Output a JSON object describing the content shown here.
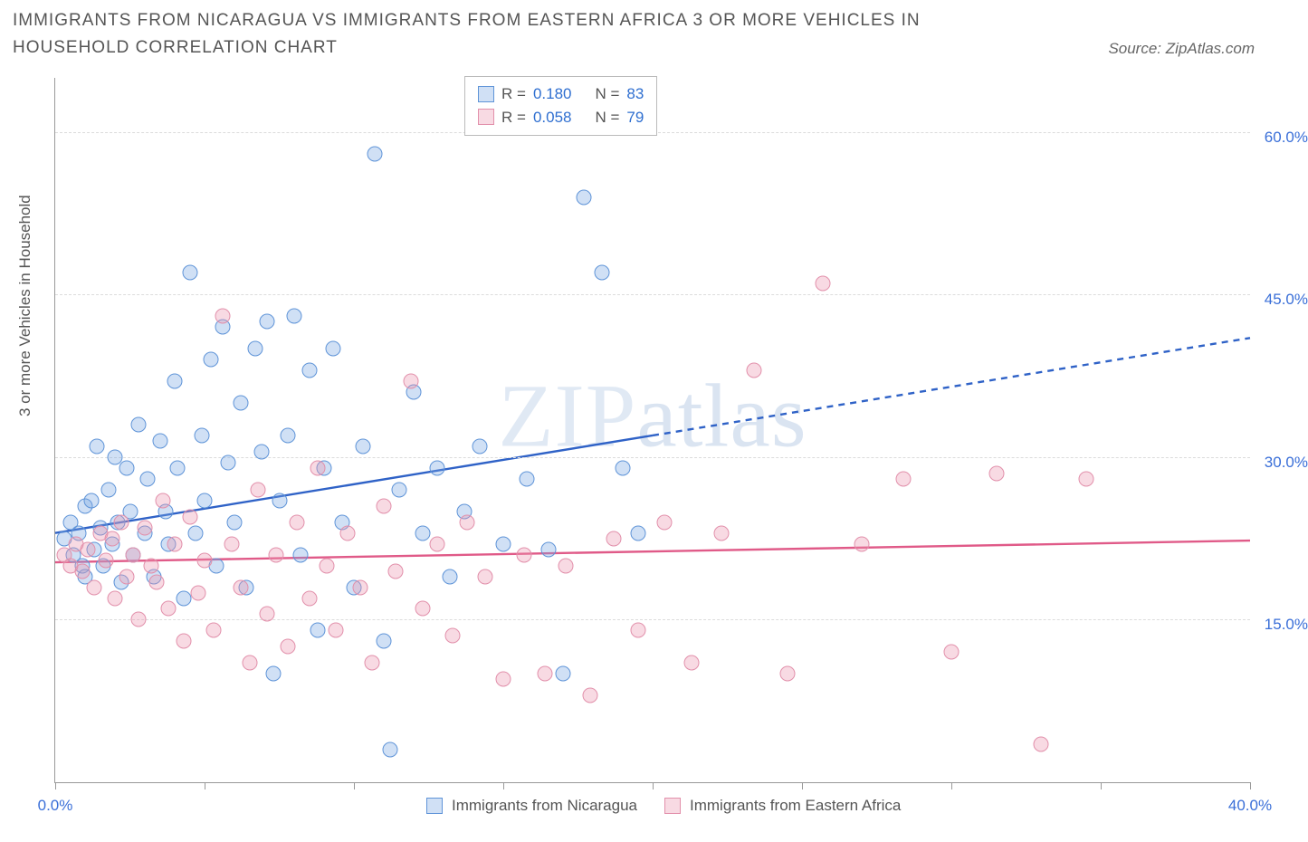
{
  "title": "IMMIGRANTS FROM NICARAGUA VS IMMIGRANTS FROM EASTERN AFRICA 3 OR MORE VEHICLES IN HOUSEHOLD CORRELATION CHART",
  "source": "Source: ZipAtlas.com",
  "y_axis_label": "3 or more Vehicles in Household",
  "watermark": "ZIPatlas",
  "chart": {
    "type": "scatter",
    "background_color": "#ffffff",
    "grid_color": "#dcdcdc",
    "axis_color": "#999999",
    "label_color": "#555555",
    "tick_label_color": "#3a6fd8",
    "title_fontsize": 19,
    "tick_fontsize": 17,
    "marker_radius": 8.5,
    "x": {
      "min": 0,
      "max": 40,
      "ticks": [
        0,
        5,
        10,
        15,
        20,
        25,
        30,
        35,
        40
      ],
      "tick_labels": {
        "0": "0.0%",
        "40": "40.0%"
      }
    },
    "y": {
      "min": 0,
      "max": 65,
      "grid_at": [
        15,
        30,
        45,
        60
      ],
      "tick_labels": {
        "15": "15.0%",
        "30": "30.0%",
        "45": "45.0%",
        "60": "60.0%"
      }
    }
  },
  "series": [
    {
      "id": "nicaragua",
      "label": "Immigrants from Nicaragua",
      "R": "0.180",
      "N": "83",
      "marker_fill": "rgba(120,165,225,0.35)",
      "marker_stroke": "#5f94d8",
      "line_color": "#2f62c7",
      "line_width": 2.4,
      "trend": {
        "y_at_x0": 23.0,
        "y_at_x40": 41.0,
        "observed_xmax": 20
      },
      "points": [
        [
          0.3,
          22.5
        ],
        [
          0.5,
          24
        ],
        [
          0.6,
          21
        ],
        [
          0.8,
          23
        ],
        [
          0.9,
          20
        ],
        [
          1.0,
          25.5
        ],
        [
          1.0,
          19
        ],
        [
          1.2,
          26
        ],
        [
          1.3,
          21.5
        ],
        [
          1.4,
          31
        ],
        [
          1.5,
          23.5
        ],
        [
          1.6,
          20
        ],
        [
          1.8,
          27
        ],
        [
          1.9,
          22
        ],
        [
          2.0,
          30
        ],
        [
          2.1,
          24
        ],
        [
          2.2,
          18.5
        ],
        [
          2.4,
          29
        ],
        [
          2.5,
          25
        ],
        [
          2.6,
          21
        ],
        [
          2.8,
          33
        ],
        [
          3.0,
          23
        ],
        [
          3.1,
          28
        ],
        [
          3.3,
          19
        ],
        [
          3.5,
          31.5
        ],
        [
          3.7,
          25
        ],
        [
          3.8,
          22
        ],
        [
          4.0,
          37
        ],
        [
          4.1,
          29
        ],
        [
          4.3,
          17
        ],
        [
          4.5,
          47
        ],
        [
          4.7,
          23
        ],
        [
          4.9,
          32
        ],
        [
          5.0,
          26
        ],
        [
          5.2,
          39
        ],
        [
          5.4,
          20
        ],
        [
          5.6,
          42
        ],
        [
          5.8,
          29.5
        ],
        [
          6.0,
          24
        ],
        [
          6.2,
          35
        ],
        [
          6.4,
          18
        ],
        [
          6.7,
          40
        ],
        [
          6.9,
          30.5
        ],
        [
          7.1,
          42.5
        ],
        [
          7.3,
          10
        ],
        [
          7.5,
          26
        ],
        [
          7.8,
          32
        ],
        [
          8.0,
          43
        ],
        [
          8.2,
          21
        ],
        [
          8.5,
          38
        ],
        [
          8.8,
          14
        ],
        [
          9.0,
          29
        ],
        [
          9.3,
          40
        ],
        [
          9.6,
          24
        ],
        [
          10.0,
          18
        ],
        [
          10.3,
          31
        ],
        [
          10.7,
          58
        ],
        [
          11.0,
          13
        ],
        [
          11.2,
          3
        ],
        [
          11.5,
          27
        ],
        [
          12.0,
          36
        ],
        [
          12.3,
          23
        ],
        [
          12.8,
          29
        ],
        [
          13.2,
          19
        ],
        [
          13.7,
          25
        ],
        [
          14.2,
          31
        ],
        [
          15.0,
          22
        ],
        [
          15.8,
          28
        ],
        [
          16.5,
          21.5
        ],
        [
          17.0,
          10
        ],
        [
          17.7,
          54
        ],
        [
          18.3,
          47
        ],
        [
          19.0,
          29
        ],
        [
          19.5,
          23
        ]
      ]
    },
    {
      "id": "eastern_africa",
      "label": "Immigrants from Eastern Africa",
      "R": "0.058",
      "N": "79",
      "marker_fill": "rgba(235,150,175,0.35)",
      "marker_stroke": "#e290ab",
      "line_color": "#e05a88",
      "line_width": 2.4,
      "trend": {
        "y_at_x0": 20.3,
        "y_at_x40": 22.3,
        "observed_xmax": 40
      },
      "points": [
        [
          0.3,
          21
        ],
        [
          0.5,
          20
        ],
        [
          0.7,
          22
        ],
        [
          0.9,
          19.5
        ],
        [
          1.1,
          21.5
        ],
        [
          1.3,
          18
        ],
        [
          1.5,
          23
        ],
        [
          1.7,
          20.5
        ],
        [
          1.9,
          22.5
        ],
        [
          2.0,
          17
        ],
        [
          2.2,
          24
        ],
        [
          2.4,
          19
        ],
        [
          2.6,
          21
        ],
        [
          2.8,
          15
        ],
        [
          3.0,
          23.5
        ],
        [
          3.2,
          20
        ],
        [
          3.4,
          18.5
        ],
        [
          3.6,
          26
        ],
        [
          3.8,
          16
        ],
        [
          4.0,
          22
        ],
        [
          4.3,
          13
        ],
        [
          4.5,
          24.5
        ],
        [
          4.8,
          17.5
        ],
        [
          5.0,
          20.5
        ],
        [
          5.3,
          14
        ],
        [
          5.6,
          43
        ],
        [
          5.9,
          22
        ],
        [
          6.2,
          18
        ],
        [
          6.5,
          11
        ],
        [
          6.8,
          27
        ],
        [
          7.1,
          15.5
        ],
        [
          7.4,
          21
        ],
        [
          7.8,
          12.5
        ],
        [
          8.1,
          24
        ],
        [
          8.5,
          17
        ],
        [
          8.8,
          29
        ],
        [
          9.1,
          20
        ],
        [
          9.4,
          14
        ],
        [
          9.8,
          23
        ],
        [
          10.2,
          18
        ],
        [
          10.6,
          11
        ],
        [
          11.0,
          25.5
        ],
        [
          11.4,
          19.5
        ],
        [
          11.9,
          37
        ],
        [
          12.3,
          16
        ],
        [
          12.8,
          22
        ],
        [
          13.3,
          13.5
        ],
        [
          13.8,
          24
        ],
        [
          14.4,
          19
        ],
        [
          15.0,
          9.5
        ],
        [
          15.7,
          21
        ],
        [
          16.4,
          10
        ],
        [
          17.1,
          20
        ],
        [
          17.9,
          8
        ],
        [
          18.7,
          22.5
        ],
        [
          19.5,
          14
        ],
        [
          20.4,
          24
        ],
        [
          21.3,
          11
        ],
        [
          22.3,
          23
        ],
        [
          23.4,
          38
        ],
        [
          24.5,
          10
        ],
        [
          25.7,
          46
        ],
        [
          27.0,
          22
        ],
        [
          28.4,
          28
        ],
        [
          30.0,
          12
        ],
        [
          31.5,
          28.5
        ],
        [
          33.0,
          3.5
        ],
        [
          34.5,
          28
        ]
      ]
    }
  ],
  "legend_top": {
    "R_label": "R =",
    "N_label": "N ="
  }
}
